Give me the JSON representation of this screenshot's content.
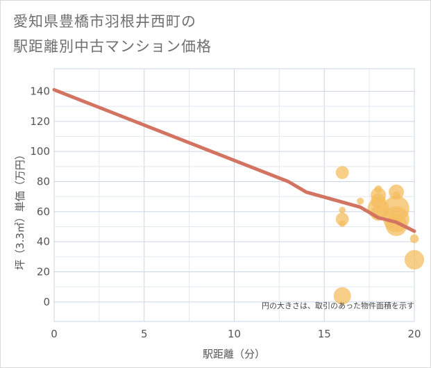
{
  "title_line1": "愛知県豊橋市羽根井西町の",
  "title_line2": "駅距離別中古マンション価格",
  "colors": {
    "line": "#d37462",
    "bubble": "#f4be60",
    "grid_major": "#c9d5e3",
    "grid_minor": "#e1e8f0",
    "background": "#ffffff"
  },
  "chart_data": {
    "type": "scatter",
    "title": "愛知県豊橋市羽根井西町の駅距離別中古マンション価格",
    "xlabel": "駅距離（分）",
    "ylabel": "坪（3.3㎡）単価（万円）",
    "xlim": [
      0,
      20
    ],
    "ylim": [
      -13,
      155
    ],
    "x_ticks": [
      0,
      5,
      10,
      15,
      20
    ],
    "y_ticks": [
      0,
      20,
      40,
      60,
      80,
      100,
      120,
      140
    ],
    "grid": true,
    "note": "円の大きさは、取引のあった物件面積を示す",
    "trend_line": {
      "name": "trend",
      "x": [
        0,
        13,
        14,
        17,
        18,
        19,
        20
      ],
      "y": [
        141,
        80,
        73,
        63,
        56,
        53,
        47
      ]
    },
    "bubbles": {
      "name": "transactions",
      "points": [
        {
          "x": 16,
          "y": 86,
          "size": 2
        },
        {
          "x": 16,
          "y": 61,
          "size": 0.5
        },
        {
          "x": 16,
          "y": 55,
          "size": 2
        },
        {
          "x": 16,
          "y": 52,
          "size": 0.5
        },
        {
          "x": 16,
          "y": 4,
          "size": 3
        },
        {
          "x": 17,
          "y": 67,
          "size": 0.6
        },
        {
          "x": 18,
          "y": 75,
          "size": 0.7
        },
        {
          "x": 18,
          "y": 71,
          "size": 2.5
        },
        {
          "x": 18,
          "y": 67,
          "size": 2.5
        },
        {
          "x": 18,
          "y": 62,
          "size": 4
        },
        {
          "x": 18,
          "y": 59,
          "size": 2.5
        },
        {
          "x": 19,
          "y": 73,
          "size": 2.5
        },
        {
          "x": 19,
          "y": 71,
          "size": 0.7
        },
        {
          "x": 19,
          "y": 62,
          "size": 5
        },
        {
          "x": 19,
          "y": 55,
          "size": 5
        },
        {
          "x": 19,
          "y": 51,
          "size": 4
        },
        {
          "x": 20,
          "y": 42,
          "size": 1
        },
        {
          "x": 20,
          "y": 28,
          "size": 3.5
        }
      ]
    }
  }
}
